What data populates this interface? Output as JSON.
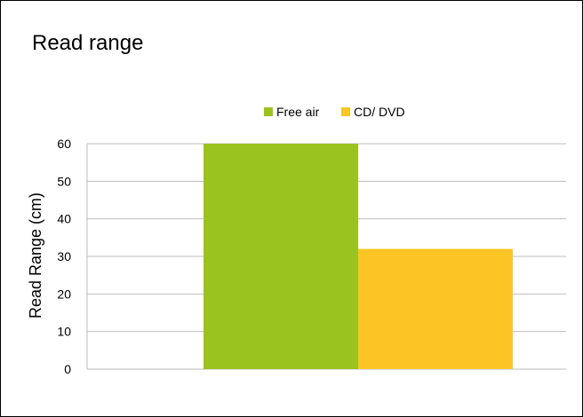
{
  "chart_data": {
    "type": "bar",
    "title": "Read range",
    "xlabel": "",
    "ylabel": "Read Range (cm)",
    "categories": [
      ""
    ],
    "series": [
      {
        "name": "Free air",
        "values": [
          60
        ],
        "color": "#9BC31F"
      },
      {
        "name": "CD/ DVD",
        "values": [
          32
        ],
        "color": "#FCC526"
      }
    ],
    "ylim": [
      0,
      60
    ],
    "yticks": [
      0,
      10,
      20,
      30,
      40,
      50,
      60
    ],
    "grid": true,
    "legend_position": "top"
  }
}
